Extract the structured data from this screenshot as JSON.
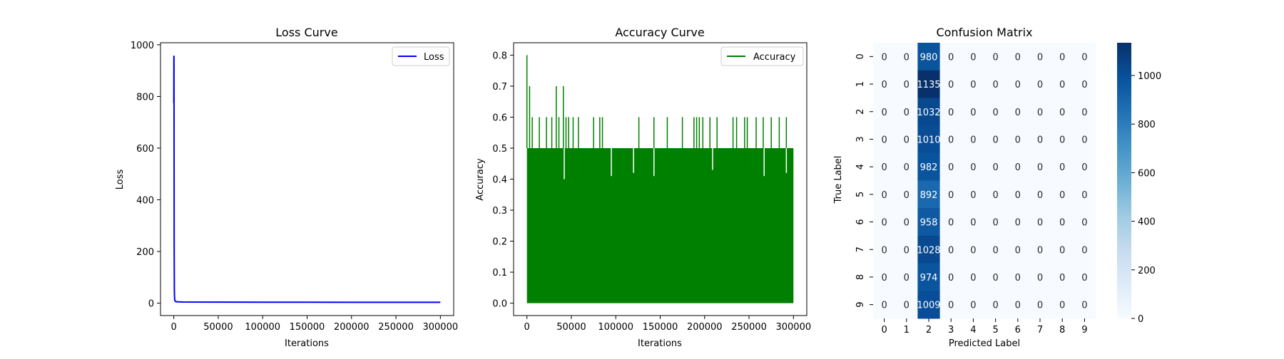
{
  "chart_data": [
    {
      "type": "line",
      "title": "Loss Curve",
      "xlabel": "Iterations",
      "ylabel": "Loss",
      "xlim": [
        -15000,
        315000
      ],
      "ylim": [
        -48,
        1008
      ],
      "xticks": [
        "0",
        "50000",
        "100000",
        "150000",
        "200000",
        "250000",
        "300000"
      ],
      "yticks": [
        "0",
        "200",
        "400",
        "600",
        "800",
        "1000"
      ],
      "legend": "top-right",
      "series": [
        {
          "name": "Loss",
          "color": "#0000ff",
          "x": [
            0,
            100,
            200,
            300,
            400,
            600,
            800,
            1000,
            1500,
            2000,
            5000,
            10000,
            50000,
            100000,
            150000,
            200000,
            250000,
            300000
          ],
          "y": [
            775,
            958,
            950,
            500,
            200,
            50,
            25,
            12,
            8,
            6,
            5,
            4.5,
            4,
            3.8,
            3.6,
            3.5,
            3.4,
            3.4
          ]
        }
      ]
    },
    {
      "type": "line",
      "title": "Accuracy Curve",
      "xlabel": "Iterations",
      "ylabel": "Accuracy",
      "xlim": [
        -15000,
        315000
      ],
      "ylim": [
        -0.04,
        0.84
      ],
      "xticks": [
        "0",
        "50000",
        "100000",
        "150000",
        "200000",
        "250000",
        "300000"
      ],
      "yticks": [
        "0.0",
        "0.1",
        "0.2",
        "0.3",
        "0.4",
        "0.5",
        "0.6",
        "0.7",
        "0.8"
      ],
      "legend": "top-right",
      "series": [
        {
          "name": "Accuracy",
          "color": "#008000",
          "fill_range": [
            0,
            300000
          ],
          "baseline_upper": 0.5,
          "spikes": [
            {
              "x": 0,
              "y": 0.8
            },
            {
              "x": 3000,
              "y": 0.7
            },
            {
              "x": 6000,
              "y": 0.6
            },
            {
              "x": 14000,
              "y": 0.6
            },
            {
              "x": 22000,
              "y": 0.6
            },
            {
              "x": 28000,
              "y": 0.6
            },
            {
              "x": 33000,
              "y": 0.7
            },
            {
              "x": 36000,
              "y": 0.6
            },
            {
              "x": 41000,
              "y": 0.7
            },
            {
              "x": 44000,
              "y": 0.6
            },
            {
              "x": 47000,
              "y": 0.6
            },
            {
              "x": 52000,
              "y": 0.6
            },
            {
              "x": 58000,
              "y": 0.6
            },
            {
              "x": 75000,
              "y": 0.6
            },
            {
              "x": 82000,
              "y": 0.6
            },
            {
              "x": 85000,
              "y": 0.6
            },
            {
              "x": 126000,
              "y": 0.6
            },
            {
              "x": 143000,
              "y": 0.6
            },
            {
              "x": 158000,
              "y": 0.6
            },
            {
              "x": 175000,
              "y": 0.6
            },
            {
              "x": 188000,
              "y": 0.6
            },
            {
              "x": 191000,
              "y": 0.6
            },
            {
              "x": 194000,
              "y": 0.6
            },
            {
              "x": 198000,
              "y": 0.6
            },
            {
              "x": 206000,
              "y": 0.6
            },
            {
              "x": 214000,
              "y": 0.6
            },
            {
              "x": 232000,
              "y": 0.6
            },
            {
              "x": 236000,
              "y": 0.6
            },
            {
              "x": 245000,
              "y": 0.6
            },
            {
              "x": 248000,
              "y": 0.6
            },
            {
              "x": 258000,
              "y": 0.6
            },
            {
              "x": 266000,
              "y": 0.6
            },
            {
              "x": 275000,
              "y": 0.6
            },
            {
              "x": 284000,
              "y": 0.6
            },
            {
              "x": 292000,
              "y": 0.6
            }
          ],
          "dips": [
            {
              "x": 42000,
              "y": 0.4
            },
            {
              "x": 95000,
              "y": 0.41
            },
            {
              "x": 120000,
              "y": 0.42
            },
            {
              "x": 143000,
              "y": 0.41
            },
            {
              "x": 209000,
              "y": 0.43
            },
            {
              "x": 267000,
              "y": 0.41
            },
            {
              "x": 292000,
              "y": 0.42
            }
          ]
        }
      ]
    },
    {
      "type": "heatmap",
      "title": "Confusion Matrix",
      "xlabel": "Predicted Label",
      "ylabel": "True Label",
      "row_labels": [
        "0",
        "1",
        "2",
        "3",
        "4",
        "5",
        "6",
        "7",
        "8",
        "9"
      ],
      "col_labels": [
        "0",
        "1",
        "2",
        "3",
        "4",
        "5",
        "6",
        "7",
        "8",
        "9"
      ],
      "matrix": [
        [
          0,
          0,
          980,
          0,
          0,
          0,
          0,
          0,
          0,
          0
        ],
        [
          0,
          0,
          1135,
          0,
          0,
          0,
          0,
          0,
          0,
          0
        ],
        [
          0,
          0,
          1032,
          0,
          0,
          0,
          0,
          0,
          0,
          0
        ],
        [
          0,
          0,
          1010,
          0,
          0,
          0,
          0,
          0,
          0,
          0
        ],
        [
          0,
          0,
          982,
          0,
          0,
          0,
          0,
          0,
          0,
          0
        ],
        [
          0,
          0,
          892,
          0,
          0,
          0,
          0,
          0,
          0,
          0
        ],
        [
          0,
          0,
          958,
          0,
          0,
          0,
          0,
          0,
          0,
          0
        ],
        [
          0,
          0,
          1028,
          0,
          0,
          0,
          0,
          0,
          0,
          0
        ],
        [
          0,
          0,
          974,
          0,
          0,
          0,
          0,
          0,
          0,
          0
        ],
        [
          0,
          0,
          1009,
          0,
          0,
          0,
          0,
          0,
          0,
          0
        ]
      ],
      "colormap": "Blues",
      "colorbar_range": [
        0,
        1135
      ],
      "colorbar_ticks": [
        "0",
        "200",
        "400",
        "600",
        "800",
        "1000"
      ]
    }
  ]
}
